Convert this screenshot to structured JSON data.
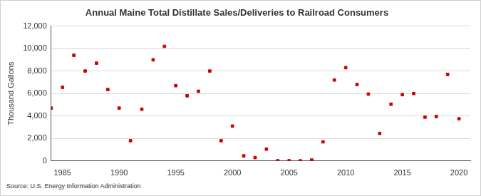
{
  "chart_data": {
    "type": "scatter",
    "title": "Annual Maine Total Distillate Sales/Deliveries to Railroad Consumers",
    "y_label": "Thousand Gallons",
    "source": "Source: U.S. Energy Information Administration",
    "x": [
      1984,
      1985,
      1986,
      1987,
      1988,
      1989,
      1990,
      1991,
      1992,
      1993,
      1994,
      1995,
      1996,
      1997,
      1998,
      1999,
      2000,
      2001,
      2002,
      2003,
      2004,
      2005,
      2006,
      2007,
      2008,
      2009,
      2010,
      2011,
      2012,
      2013,
      2014,
      2015,
      2016,
      2017,
      2018,
      2019,
      2020
    ],
    "values": [
      4700,
      6550,
      9400,
      8000,
      8700,
      6350,
      4700,
      1800,
      4600,
      9000,
      10200,
      6700,
      5800,
      6200,
      8000,
      1800,
      3100,
      450,
      300,
      1050,
      20,
      20,
      10,
      80,
      1700,
      7200,
      8300,
      6800,
      5950,
      2450,
      5050,
      5900,
      6000,
      3900,
      3950,
      7700,
      3750
    ],
    "color": "#cc0000",
    "marker": "square",
    "xlim": [
      1984,
      2021
    ],
    "xticks": [
      1985,
      1990,
      1995,
      2000,
      2005,
      2010,
      2015,
      2020
    ],
    "ylim": [
      0,
      12000
    ],
    "yticks": [
      0,
      {
        "value": 2000,
        "label": "2,000"
      },
      {
        "value": 4000,
        "label": "4,000"
      },
      {
        "value": 6000,
        "label": "6,000"
      },
      {
        "value": 8000,
        "label": "8,000"
      },
      {
        "value": 10000,
        "label": "10,000"
      },
      {
        "value": 12000,
        "label": "12,000"
      }
    ],
    "grid": true
  }
}
